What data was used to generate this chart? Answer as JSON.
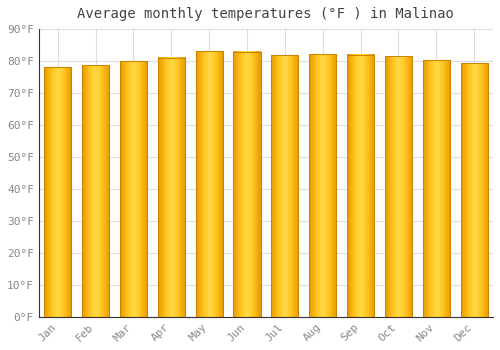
{
  "title": "Average monthly temperatures (°F ) in Malinao",
  "months": [
    "Jan",
    "Feb",
    "Mar",
    "Apr",
    "May",
    "Jun",
    "Jul",
    "Aug",
    "Sep",
    "Oct",
    "Nov",
    "Dec"
  ],
  "values": [
    78.1,
    78.8,
    79.9,
    81.1,
    83.1,
    82.9,
    81.9,
    82.2,
    82.0,
    81.5,
    80.2,
    79.3
  ],
  "bar_color_left": "#F5A800",
  "bar_color_center": "#FFD44A",
  "bar_color_right": "#F5A800",
  "background_color": "#FFFFFF",
  "plot_bg_color": "#FFFFFF",
  "grid_color": "#DDDDDD",
  "tick_label_color": "#888888",
  "title_color": "#444444",
  "axis_color": "#333333",
  "ylim": [
    0,
    90
  ],
  "ytick_step": 10,
  "title_fontsize": 10,
  "tick_fontsize": 8
}
